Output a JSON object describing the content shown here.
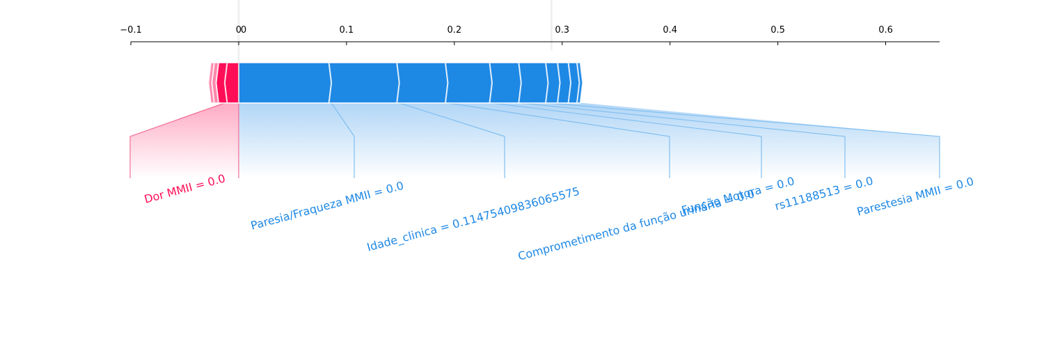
{
  "chart_data": {
    "type": "force",
    "title": "",
    "xlabel": "",
    "ylabel": "",
    "xlim": [
      -0.1,
      0.65
    ],
    "x_ticks": [
      -0.1,
      0,
      0.1,
      0.2,
      0.3,
      0.4,
      0.5,
      0.6
    ],
    "x_tick_labels": [
      "−0.1",
      "0",
      "0.1",
      "0.2",
      "0.3",
      "0.4",
      "0.5",
      "0.6"
    ],
    "base_value": 0.0,
    "base_value_label": "0 0",
    "top_marker_x": 0.29,
    "colors": {
      "positive": "#ff0d57",
      "negative": "#1e88e5",
      "positive_line": "#f26d96",
      "negative_line": "#82bff0"
    },
    "positive_segments": [
      {
        "start": -0.013,
        "end": 0.0,
        "label": "Dor MMII = 0.0"
      },
      {
        "start": -0.021,
        "end": -0.013,
        "label": ""
      },
      {
        "start": -0.025,
        "end": -0.021,
        "label": ""
      },
      {
        "start": -0.028,
        "end": -0.025,
        "label": ""
      }
    ],
    "negative_segments": [
      {
        "start": 0.0,
        "end": 0.086,
        "label": "Paresia/Fraqueza MMII = 0.0"
      },
      {
        "start": 0.086,
        "end": 0.149,
        "label": "Idade_clinica = 0.11475409836065575"
      },
      {
        "start": 0.149,
        "end": 0.194,
        "label": "Comprometimento da função urinária = 0.0"
      },
      {
        "start": 0.194,
        "end": 0.235,
        "label": "Função Motora = 0.0"
      },
      {
        "start": 0.235,
        "end": 0.262,
        "label": "rs11188513 = 0.0"
      },
      {
        "start": 0.262,
        "end": 0.287,
        "label": "Parestesia MMII = 0.0"
      },
      {
        "start": 0.287,
        "end": 0.298,
        "label": ""
      },
      {
        "start": 0.298,
        "end": 0.308,
        "label": ""
      },
      {
        "start": 0.308,
        "end": 0.316,
        "label": ""
      },
      {
        "start": 0.316,
        "end": 0.319,
        "label": ""
      }
    ]
  }
}
